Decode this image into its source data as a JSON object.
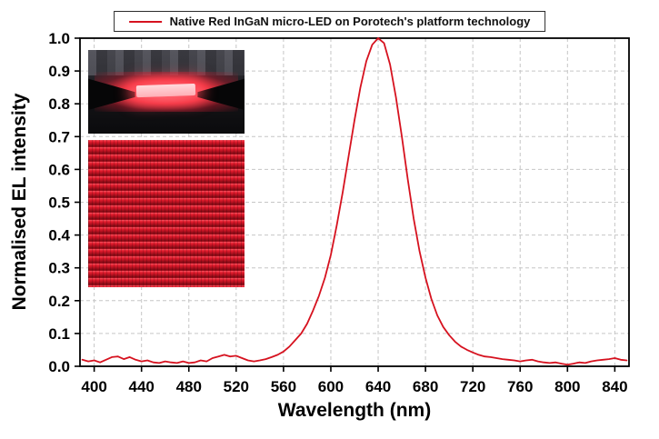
{
  "chart_data": {
    "type": "line",
    "title": "",
    "xlabel": "Wavelength (nm)",
    "ylabel": "Normalised EL intensity",
    "xlim": [
      388,
      852
    ],
    "ylim": [
      0,
      1.0
    ],
    "x_ticks": [
      400,
      440,
      480,
      520,
      560,
      600,
      640,
      680,
      720,
      760,
      800,
      840
    ],
    "y_ticks": [
      0.0,
      0.1,
      0.2,
      0.3,
      0.4,
      0.5,
      0.6,
      0.7,
      0.8,
      0.9,
      1.0
    ],
    "grid": "dashed",
    "legend_position": "top-center",
    "series": [
      {
        "name": "Native Red InGaN micro-LED on Porotech's platform technology",
        "color": "#d6121f",
        "x": [
          390,
          395,
          400,
          405,
          410,
          415,
          420,
          425,
          430,
          435,
          440,
          445,
          450,
          455,
          460,
          465,
          470,
          475,
          480,
          485,
          490,
          495,
          500,
          505,
          510,
          515,
          520,
          525,
          530,
          535,
          540,
          545,
          550,
          555,
          560,
          565,
          570,
          575,
          580,
          585,
          590,
          595,
          600,
          605,
          610,
          615,
          620,
          625,
          630,
          635,
          640,
          645,
          650,
          655,
          660,
          665,
          670,
          675,
          680,
          685,
          690,
          695,
          700,
          705,
          710,
          715,
          720,
          725,
          730,
          735,
          740,
          745,
          750,
          755,
          760,
          765,
          770,
          775,
          780,
          785,
          790,
          795,
          800,
          805,
          810,
          815,
          820,
          825,
          830,
          835,
          840,
          845,
          850
        ],
        "y": [
          0.02,
          0.015,
          0.018,
          0.012,
          0.02,
          0.028,
          0.03,
          0.022,
          0.028,
          0.02,
          0.015,
          0.018,
          0.012,
          0.01,
          0.015,
          0.012,
          0.01,
          0.015,
          0.01,
          0.012,
          0.018,
          0.015,
          0.025,
          0.03,
          0.035,
          0.03,
          0.032,
          0.025,
          0.018,
          0.015,
          0.018,
          0.022,
          0.028,
          0.035,
          0.045,
          0.06,
          0.08,
          0.1,
          0.13,
          0.17,
          0.215,
          0.27,
          0.34,
          0.43,
          0.53,
          0.64,
          0.75,
          0.85,
          0.93,
          0.98,
          1.0,
          0.985,
          0.92,
          0.82,
          0.7,
          0.57,
          0.45,
          0.35,
          0.27,
          0.205,
          0.155,
          0.12,
          0.095,
          0.075,
          0.06,
          0.05,
          0.042,
          0.035,
          0.03,
          0.028,
          0.025,
          0.022,
          0.02,
          0.018,
          0.015,
          0.018,
          0.02,
          0.015,
          0.012,
          0.01,
          0.012,
          0.008,
          0.005,
          0.008,
          0.012,
          0.01,
          0.015,
          0.018,
          0.02,
          0.022,
          0.025,
          0.02,
          0.018
        ]
      }
    ]
  }
}
